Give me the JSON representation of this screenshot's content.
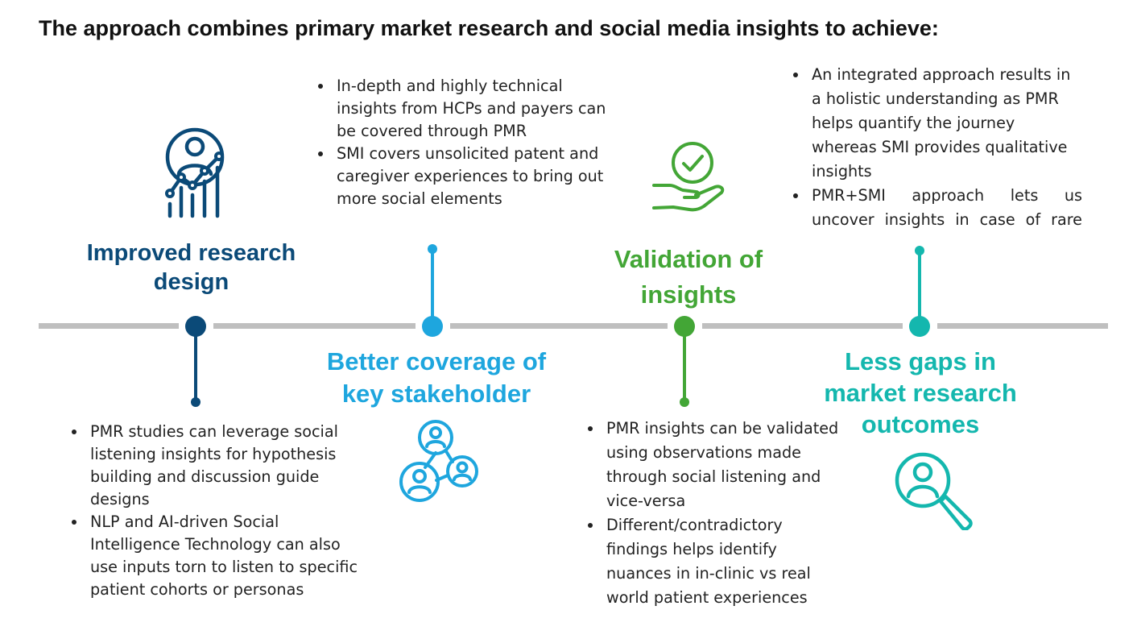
{
  "title": "The approach combines primary market research and social media insights to achieve:",
  "colors": {
    "dark_blue": "#0b4a78",
    "blue": "#1ea6de",
    "green": "#43a636",
    "teal": "#14b7ae",
    "axis": "#bfbfbf"
  },
  "milestones": [
    {
      "heading": "Improved research design",
      "icon": "user-analytics-chart-icon",
      "bullets": [
        "PMR studies can leverage social listening insights for hypothesis building and discussion guide designs",
        "NLP and AI-driven Social Intelligence Technology can also use inputs torn to listen to specific patient cohorts or personas"
      ]
    },
    {
      "heading": "Better coverage of key stakeholder",
      "icon": "people-network-icon",
      "bullets": [
        "In-depth and highly technical insights from HCPs and payers can be covered through PMR",
        "SMI covers unsolicited patent and caregiver experiences to bring out more social elements"
      ]
    },
    {
      "heading": "Validation of insights",
      "icon": "checkmark-hand-icon",
      "bullets": [
        "PMR insights can be validated using observations made through social listening and vice-versa",
        "Different/contradictory findings helps identify nuances in in-clinic vs real world patient experiences"
      ]
    },
    {
      "heading": "Less gaps in market research outcomes",
      "icon": "user-magnifier-icon",
      "bullets": [
        "An integrated approach results in a holistic understanding as PMR helps quantify the journey whereas SMI provides qualitative insights",
        "PMR+SMI approach lets us uncover insights in case of rare"
      ]
    }
  ]
}
